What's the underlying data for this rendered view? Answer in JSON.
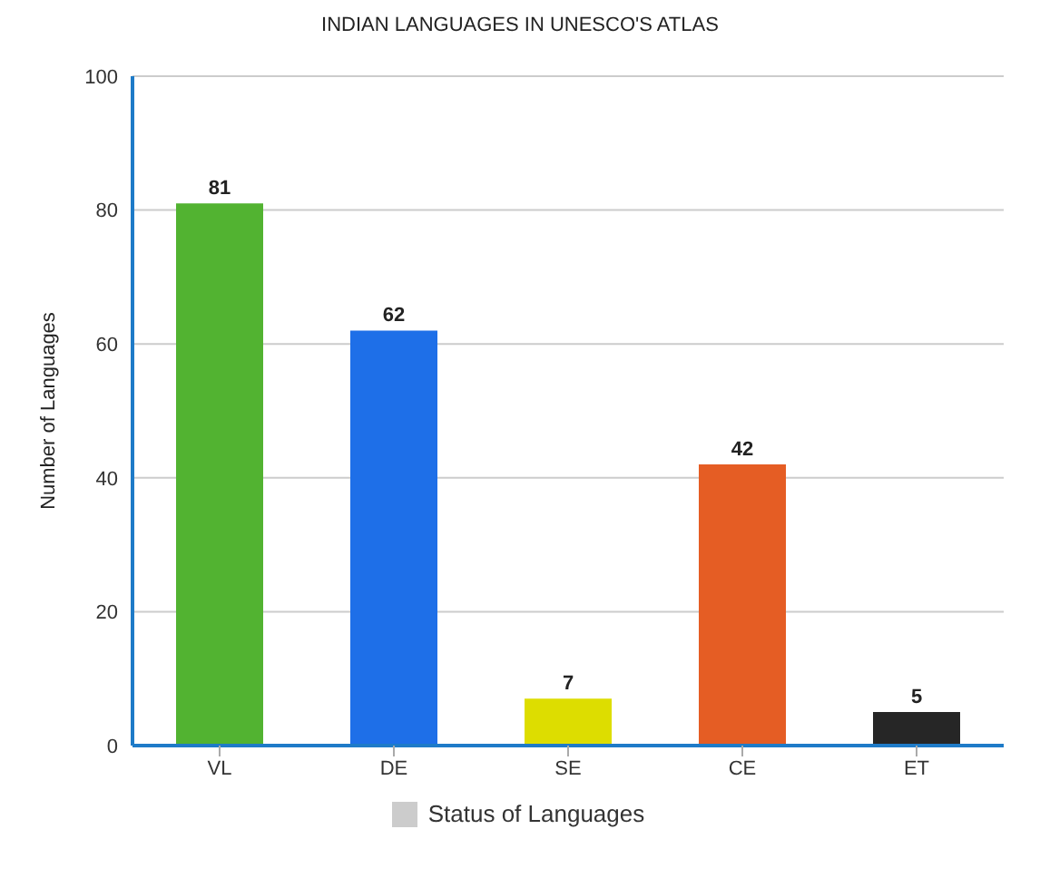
{
  "chart_data": {
    "type": "bar",
    "title": "INDIAN LANGUAGES IN UNESCO'S ATLAS",
    "ylabel": "Number of Languages",
    "categories": [
      "VL",
      "DE",
      "SE",
      "CE",
      "ET"
    ],
    "series": [
      {
        "name": "Status of Languages",
        "color": "#cccccc",
        "colors": [
          "#52b331",
          "#1e6fe8",
          "#dddd00",
          "#e55d24",
          "#262626"
        ],
        "values": [
          81,
          62,
          7,
          42,
          5
        ]
      }
    ],
    "ylim": [
      0,
      100
    ],
    "yticks": [
      0,
      20,
      40,
      60,
      80,
      100
    ],
    "grid": "y",
    "legend": "bottom",
    "data_labels": true
  }
}
